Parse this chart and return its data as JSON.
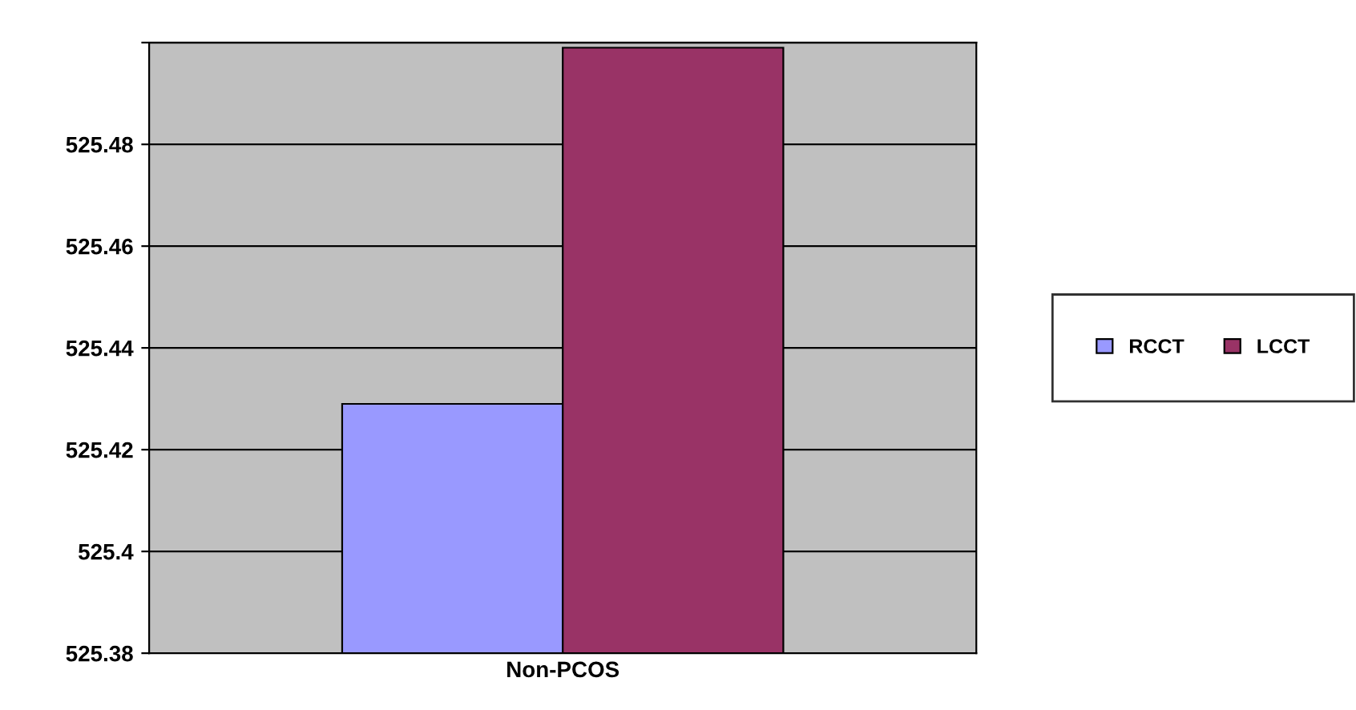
{
  "chart_data": {
    "type": "bar",
    "xlabel": null,
    "categories": [
      "Non-PCOS"
    ],
    "series": [
      {
        "name": "RCCT",
        "color": "#9999ff",
        "values": [
          525.429
        ]
      },
      {
        "name": "LCCT",
        "color": "#993366",
        "values": [
          525.499
        ]
      }
    ],
    "ylim": [
      525.38,
      525.5
    ],
    "yticks": [
      525.38,
      525.4,
      525.42,
      525.44,
      525.46,
      525.48,
      {
        "value": 525.5,
        "label": null
      }
    ],
    "grid": "y",
    "legend": "right"
  }
}
